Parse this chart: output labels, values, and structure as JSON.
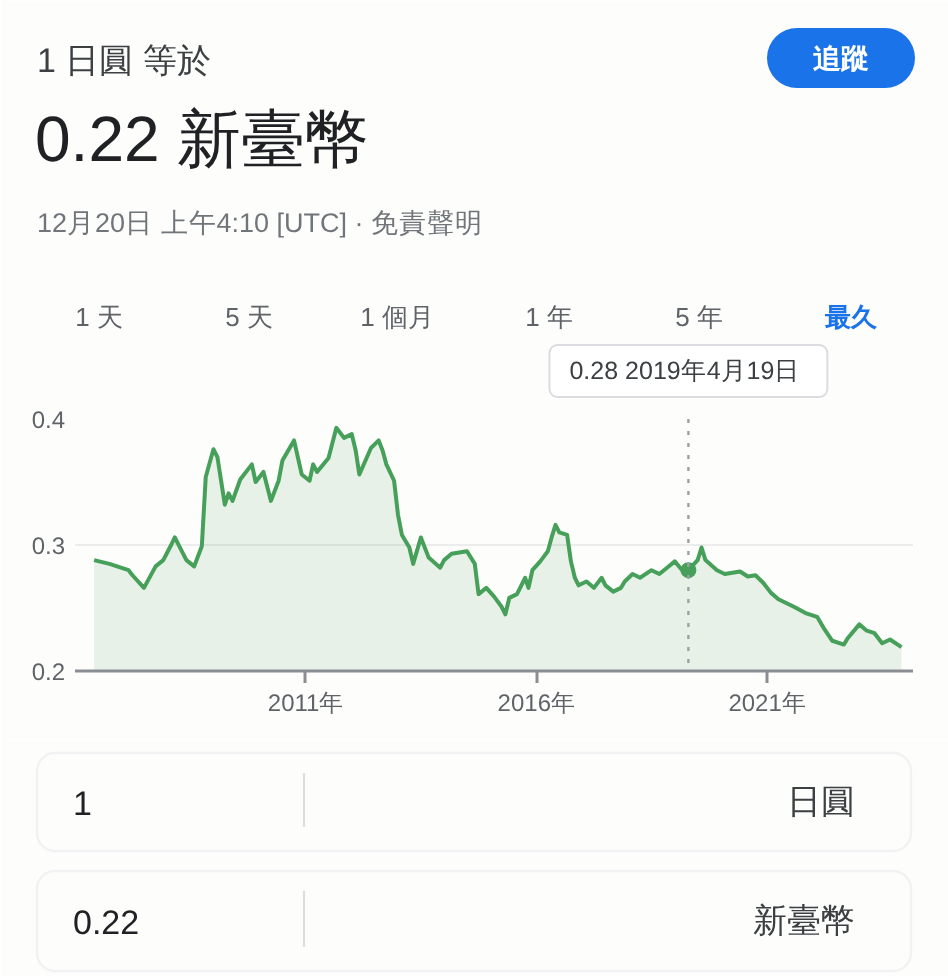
{
  "chart_data": {
    "type": "area",
    "title": "0.22 新臺幣",
    "subtitle": "12月20日 上午4:10 [UTC] · 免責聲明",
    "annotations": [
      "1 日圓 等於",
      "追蹤",
      "1 天",
      "5 天",
      "1 個月",
      "1 年",
      "5 年",
      "最久",
      "1",
      "日圓",
      "0.22",
      "新臺幣"
    ],
    "series": [
      {
        "color": "#46a05a",
        "x": [
          "2006-06",
          "2006-10",
          "2007-03",
          "2007-04",
          "2007-07",
          "2007-10",
          "2007-12",
          "2008-02",
          "2008-03",
          "2008-06",
          "2008-08",
          "2008-10",
          "2008-11",
          "2009-01",
          "2009-02",
          "2009-04",
          "2009-05",
          "2009-06",
          "2009-08",
          "2009-11",
          "2009-12",
          "2010-02",
          "2010-04",
          "2010-06",
          "2010-07",
          "2010-10",
          "2010-12",
          "2011-02",
          "2011-03",
          "2011-04",
          "2011-07",
          "2011-09",
          "2011-11",
          "2012-01",
          "2012-02",
          "2012-03",
          "2012-06",
          "2012-08",
          "2012-09",
          "2012-10",
          "2012-12",
          "2013-01",
          "2013-02",
          "2013-04",
          "2013-05",
          "2013-07",
          "2013-09",
          "2013-12",
          "2014-01",
          "2014-03",
          "2014-07",
          "2014-09",
          "2014-10",
          "2014-12",
          "2015-02",
          "2015-04",
          "2015-05",
          "2015-06",
          "2015-08",
          "2015-10-05",
          "2015-10-31",
          "2015-12",
          "2016-02",
          "2016-04",
          "2016-05",
          "2016-06",
          "2016-07",
          "2016-09",
          "2016-10",
          "2016-11",
          "2016-12",
          "2017-02",
          "2017-04",
          "2017-06",
          "2017-07",
          "2017-09",
          "2017-11",
          "2017-12",
          "2018-02",
          "2018-04",
          "2018-07",
          "2018-09",
          "2018-11",
          "2019-01",
          "2019-03",
          "2019-04-19",
          "2019-07",
          "2019-08",
          "2019-09",
          "2019-12",
          "2020-02",
          "2020-06",
          "2020-08",
          "2020-10",
          "2020-12",
          "2021-02",
          "2021-04",
          "2021-08",
          "2021-11",
          "2022-02",
          "2022-04",
          "2022-06",
          "2022-09",
          "2022-10",
          "2023-01",
          "2023-03",
          "2023-05",
          "2023-07",
          "2023-09",
          "2023-12"
        ],
        "values": [
          0.288,
          0.285,
          0.28,
          0.276,
          0.266,
          0.283,
          0.288,
          0.3,
          0.306,
          0.288,
          0.283,
          0.299,
          0.354,
          0.376,
          0.37,
          0.332,
          0.341,
          0.335,
          0.352,
          0.364,
          0.35,
          0.358,
          0.335,
          0.351,
          0.367,
          0.383,
          0.356,
          0.351,
          0.364,
          0.358,
          0.369,
          0.393,
          0.385,
          0.388,
          0.375,
          0.356,
          0.377,
          0.383,
          0.375,
          0.364,
          0.351,
          0.324,
          0.308,
          0.298,
          0.285,
          0.306,
          0.29,
          0.282,
          0.288,
          0.293,
          0.295,
          0.285,
          0.261,
          0.266,
          0.259,
          0.251,
          0.245,
          0.258,
          0.261,
          0.274,
          0.266,
          0.28,
          0.287,
          0.295,
          0.306,
          0.316,
          0.31,
          0.308,
          0.287,
          0.274,
          0.268,
          0.271,
          0.266,
          0.274,
          0.268,
          0.263,
          0.266,
          0.271,
          0.277,
          0.274,
          0.28,
          0.277,
          0.282,
          0.287,
          0.28,
          0.28,
          0.288,
          0.298,
          0.288,
          0.28,
          0.277,
          0.279,
          0.275,
          0.276,
          0.27,
          0.262,
          0.257,
          0.251,
          0.246,
          0.243,
          0.233,
          0.224,
          0.221,
          0.226,
          0.237,
          0.232,
          0.23,
          0.222,
          0.225,
          0.219
        ]
      },
      {
        "type": "scatter",
        "color": "#46a05a",
        "marker": "circle",
        "x": [
          "2019-04-19"
        ],
        "values": [
          0.28
        ]
      }
    ],
    "xlim": [
      "2006-01",
      "2024-03"
    ],
    "xticks": [
      {
        "value": "2011-01-01",
        "label": "2011年"
      },
      {
        "value": "2016-01-01",
        "label": "2016年"
      },
      {
        "value": "2021-01-01",
        "label": "2021年"
      }
    ],
    "ylim": [
      0.2,
      0.4
    ],
    "yticks": [
      0.2,
      0.3,
      0.4
    ],
    "grid": "y",
    "ref_lines": [
      {
        "axis": "x",
        "value": "2019-04-19",
        "label": "0.28  2019年4月19日",
        "line_style": "dotted",
        "color": "#9aa0a6"
      }
    ]
  }
}
